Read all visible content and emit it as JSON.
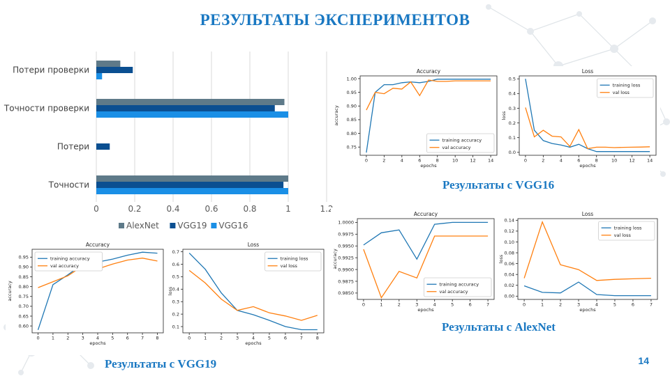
{
  "slide": {
    "title": "РЕЗУЛЬТАТЫ ЭКСПЕРИМЕНТОВ",
    "page_number": "14",
    "accent_color": "#1a78c2",
    "captions": {
      "vgg16": "Результаты с VGG16",
      "alexnet": "Результаты с AlexNet",
      "vgg19": "Результаты с VGG19"
    }
  },
  "chart_data": [
    {
      "id": "comparison",
      "type": "bar",
      "orientation": "horizontal",
      "categories": [
        "Точности",
        "Потери",
        "Точности проверки",
        "Потери проверки"
      ],
      "series": [
        {
          "name": "AlexNet",
          "color": "#5e7a89",
          "values": [
            1.0,
            0.0,
            0.98,
            0.125
          ]
        },
        {
          "name": "VGG19",
          "color": "#0b4f91",
          "values": [
            0.975,
            0.07,
            0.93,
            0.19
          ]
        },
        {
          "name": "VGG16",
          "color": "#1a8fe6",
          "values": [
            1.0,
            0.0,
            1.0,
            0.03
          ]
        }
      ],
      "xticks": [
        "0",
        "0.2",
        "0.4",
        "0.6",
        "0.8",
        "1",
        "1.2"
      ],
      "xlim": [
        0,
        1.2
      ],
      "legend": "bottom"
    },
    {
      "id": "vgg16-accuracy",
      "type": "line",
      "title": "Accuracy",
      "xlabel": "epochs",
      "ylabel": "accuracy",
      "x": [
        0,
        1,
        2,
        3,
        4,
        5,
        6,
        7,
        8,
        9,
        10,
        11,
        12,
        13,
        14
      ],
      "xlim": [
        -0.7,
        14.7
      ],
      "ylim": [
        0.72,
        1.01
      ],
      "xticks": [
        0,
        2,
        4,
        6,
        8,
        10,
        12,
        14
      ],
      "yticks": [
        0.75,
        0.8,
        0.85,
        0.9,
        0.95,
        1.0
      ],
      "ytick_labels": [
        "0.75",
        "0.80",
        "0.85",
        "0.90",
        "0.95",
        "1.00"
      ],
      "legend": "lower-right",
      "series": [
        {
          "name": "training accuracy",
          "color": "#1f77b4",
          "values": [
            0.73,
            0.95,
            0.978,
            0.978,
            0.985,
            0.988,
            0.985,
            0.99,
            0.998,
            0.998,
            0.998,
            0.998,
            0.998,
            0.998,
            0.998
          ]
        },
        {
          "name": "val accuracy",
          "color": "#ff7f0e",
          "values": [
            0.885,
            0.95,
            0.945,
            0.965,
            0.962,
            0.988,
            0.938,
            0.995,
            0.99,
            0.99,
            0.992,
            0.992,
            0.992,
            0.992,
            0.992
          ]
        }
      ]
    },
    {
      "id": "vgg16-loss",
      "type": "line",
      "title": "Loss",
      "xlabel": "epochs",
      "ylabel": "loss",
      "x": [
        0,
        1,
        2,
        3,
        4,
        5,
        6,
        7,
        8,
        9,
        10,
        11,
        12,
        13,
        14
      ],
      "xlim": [
        -0.7,
        14.7
      ],
      "ylim": [
        -0.02,
        0.52
      ],
      "xticks": [
        0,
        2,
        4,
        6,
        8,
        10,
        12,
        14
      ],
      "yticks": [
        0.0,
        0.1,
        0.2,
        0.3,
        0.4,
        0.5
      ],
      "ytick_labels": [
        "0.0",
        "0.1",
        "0.2",
        "0.3",
        "0.4",
        "0.5"
      ],
      "legend": "upper-right",
      "series": [
        {
          "name": "training loss",
          "color": "#1f77b4",
          "values": [
            0.5,
            0.15,
            0.08,
            0.06,
            0.05,
            0.035,
            0.055,
            0.025,
            0.005,
            0.005,
            0.005,
            0.005,
            0.005,
            0.005,
            0.005
          ]
        },
        {
          "name": "val loss",
          "color": "#ff7f0e",
          "values": [
            0.305,
            0.105,
            0.15,
            0.11,
            0.105,
            0.04,
            0.155,
            0.025,
            0.035,
            0.035,
            0.032,
            0.034,
            0.035,
            0.036,
            0.038
          ]
        }
      ]
    },
    {
      "id": "alexnet-accuracy",
      "type": "line",
      "title": "Accuracy",
      "xlabel": "epochs",
      "ylabel": "accuracy",
      "x": [
        0,
        1,
        2,
        3,
        4,
        5,
        6,
        7
      ],
      "xlim": [
        -0.35,
        7.35
      ],
      "ylim": [
        0.98365,
        1.0008
      ],
      "xticks": [
        0,
        1,
        2,
        3,
        4,
        5,
        6,
        7
      ],
      "yticks": [
        0.985,
        0.9875,
        0.99,
        0.9925,
        0.995,
        0.9975,
        1.0
      ],
      "ytick_labels": [
        "0.9850",
        "0.9875",
        "0.9900",
        "0.9925",
        "0.9950",
        "0.9975",
        "1.0000"
      ],
      "legend": "lower-right",
      "series": [
        {
          "name": "training accuracy",
          "color": "#1f77b4",
          "values": [
            0.9952,
            0.9978,
            0.9984,
            0.9922,
            0.9996,
            1.0,
            1.0,
            1.0
          ]
        },
        {
          "name": "val accuracy",
          "color": "#ff7f0e",
          "values": [
            0.9943,
            0.984,
            0.9896,
            0.9882,
            0.9971,
            0.9971,
            0.9971,
            0.9971
          ]
        }
      ]
    },
    {
      "id": "alexnet-loss",
      "type": "line",
      "title": "Loss",
      "xlabel": "epochs",
      "ylabel": "loss",
      "x": [
        0,
        1,
        2,
        3,
        4,
        5,
        6,
        7
      ],
      "xlim": [
        -0.35,
        7.35
      ],
      "ylim": [
        -0.006,
        0.143
      ],
      "xticks": [
        0,
        1,
        2,
        3,
        4,
        5,
        6,
        7
      ],
      "yticks": [
        0.0,
        0.02,
        0.04,
        0.06,
        0.08,
        0.1,
        0.12,
        0.14
      ],
      "ytick_labels": [
        "0.00",
        "0.02",
        "0.04",
        "0.06",
        "0.08",
        "0.10",
        "0.12",
        "0.14"
      ],
      "legend": "upper-right",
      "series": [
        {
          "name": "training loss",
          "color": "#1f77b4",
          "values": [
            0.019,
            0.007,
            0.006,
            0.026,
            0.003,
            0.001,
            0.001,
            0.001
          ]
        },
        {
          "name": "val loss",
          "color": "#ff7f0e",
          "values": [
            0.033,
            0.137,
            0.058,
            0.049,
            0.029,
            0.031,
            0.032,
            0.033
          ]
        }
      ]
    },
    {
      "id": "vgg19-accuracy",
      "type": "line",
      "title": "Accuracy",
      "xlabel": "epochs",
      "ylabel": "accuracy",
      "x": [
        0,
        1,
        2,
        3,
        4,
        5,
        6,
        7,
        8
      ],
      "xlim": [
        -0.4,
        8.4
      ],
      "ylim": [
        0.565,
        0.99
      ],
      "xticks": [
        0,
        1,
        2,
        3,
        4,
        5,
        6,
        7,
        8
      ],
      "yticks": [
        0.6,
        0.65,
        0.7,
        0.75,
        0.8,
        0.85,
        0.9,
        0.95
      ],
      "ytick_labels": [
        "0.60",
        "0.65",
        "0.70",
        "0.75",
        "0.80",
        "0.85",
        "0.90",
        "0.95"
      ],
      "legend": "upper-left",
      "series": [
        {
          "name": "training accuracy",
          "color": "#1f77b4",
          "values": [
            0.58,
            0.81,
            0.86,
            0.915,
            0.925,
            0.94,
            0.96,
            0.975,
            0.97
          ]
        },
        {
          "name": "val accuracy",
          "color": "#ff7f0e",
          "values": [
            0.795,
            0.825,
            0.855,
            0.905,
            0.89,
            0.915,
            0.935,
            0.945,
            0.93
          ]
        }
      ]
    },
    {
      "id": "vgg19-loss",
      "type": "line",
      "title": "Loss",
      "xlabel": "epochs",
      "ylabel": "loss",
      "x": [
        0,
        1,
        2,
        3,
        4,
        5,
        6,
        7,
        8
      ],
      "xlim": [
        -0.4,
        8.4
      ],
      "ylim": [
        0.05,
        0.72
      ],
      "xticks": [
        0,
        1,
        2,
        3,
        4,
        5,
        6,
        7,
        8
      ],
      "yticks": [
        0.1,
        0.2,
        0.3,
        0.4,
        0.5,
        0.6,
        0.7
      ],
      "ytick_labels": [
        "0.1",
        "0.2",
        "0.3",
        "0.4",
        "0.5",
        "0.6",
        "0.7"
      ],
      "legend": "upper-right",
      "series": [
        {
          "name": "training loss",
          "color": "#1f77b4",
          "values": [
            0.69,
            0.56,
            0.37,
            0.23,
            0.195,
            0.15,
            0.1,
            0.075,
            0.075
          ]
        },
        {
          "name": "val loss",
          "color": "#ff7f0e",
          "values": [
            0.55,
            0.45,
            0.32,
            0.23,
            0.26,
            0.21,
            0.185,
            0.15,
            0.19
          ]
        }
      ]
    }
  ]
}
